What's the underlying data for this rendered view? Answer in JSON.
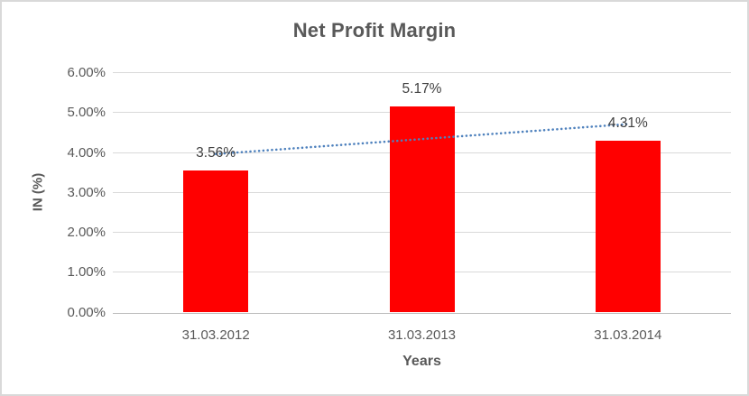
{
  "chart_data": {
    "type": "bar",
    "title": "Net Profit Margin",
    "xlabel": "Years",
    "ylabel": "IN (%)",
    "categories": [
      "31.03.2012",
      "31.03.2013",
      "31.03.2014"
    ],
    "values": [
      3.56,
      5.17,
      4.31
    ],
    "data_labels": [
      "3.56%",
      "5.17%",
      "4.31%"
    ],
    "ylim": [
      0,
      6
    ],
    "ytick_step": 1,
    "ytick_labels": [
      "0.00%",
      "1.00%",
      "2.00%",
      "3.00%",
      "4.00%",
      "5.00%",
      "6.00%"
    ],
    "grid": true,
    "legend": "none",
    "trendline": {
      "type": "linear",
      "style": "dotted"
    },
    "colors": {
      "bar": "#ff0000",
      "trendline": "#4e81bd",
      "title_text": "#595959",
      "axis_text": "#595959",
      "data_label_text": "#404040",
      "gridline": "#d9d9d9",
      "axis_line": "#bfbfbf",
      "chart_border": "#d9d9d9"
    }
  }
}
